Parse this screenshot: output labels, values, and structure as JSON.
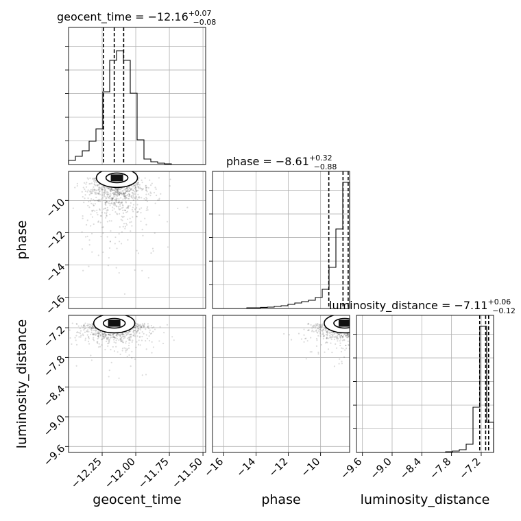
{
  "chart_data": {
    "type": "corner",
    "parameters": [
      {
        "name": "geocent_time",
        "title": {
          "prefix": "geocent_time = ",
          "median": "−12.16",
          "plus": "+0.07",
          "minus": "−0.08"
        },
        "median": -12.16,
        "q_low": -12.24,
        "q_high": -12.09,
        "range": [
          -12.5,
          -11.48
        ],
        "ticks": [
          -12.25,
          -12.0,
          -11.75,
          -11.5
        ],
        "tick_labels": [
          "−12.25",
          "−12.00",
          "−11.75",
          "−11.50"
        ],
        "hist": [
          0.03,
          0.06,
          0.1,
          0.17,
          0.26,
          0.53,
          0.76,
          0.83,
          0.76,
          0.52,
          0.18,
          0.04,
          0.02,
          0.01,
          0.005,
          0,
          0,
          0,
          0,
          0
        ]
      },
      {
        "name": "phase",
        "title": {
          "prefix": "phase = ",
          "median": "−8.61",
          "plus": "+0.32",
          "minus": "−0.88"
        },
        "median": -8.61,
        "q_low": -9.49,
        "q_high": -8.29,
        "range": [
          -16.7,
          -8.2
        ],
        "ticks": [
          -16,
          -14,
          -12,
          -10
        ],
        "tick_labels": [
          "−16",
          "−14",
          "−12",
          "−10"
        ],
        "hist": [
          0,
          0,
          0,
          0,
          0,
          0.005,
          0.005,
          0.008,
          0.01,
          0.015,
          0.02,
          0.03,
          0.04,
          0.05,
          0.06,
          0.08,
          0.14,
          0.3,
          0.58,
          0.92
        ]
      },
      {
        "name": "luminosity_distance",
        "title": {
          "prefix": "luminosity_distance = ",
          "median": "−7.11",
          "plus": "+0.06",
          "minus": "−0.12"
        },
        "median": -7.11,
        "q_low": -7.23,
        "q_high": -7.05,
        "range": [
          -9.72,
          -6.95
        ],
        "ticks": [
          -9.6,
          -9.0,
          -8.4,
          -7.8,
          -7.2
        ],
        "tick_labels": [
          "−9.6",
          "−9.0",
          "−8.4",
          "−7.8",
          "−7.2"
        ],
        "hist": [
          0,
          0,
          0,
          0,
          0,
          0,
          0,
          0,
          0,
          0,
          0,
          0,
          0,
          0.005,
          0.01,
          0.02,
          0.06,
          0.33,
          0.92,
          0.22
        ]
      }
    ],
    "pairs": [
      {
        "x": "geocent_time",
        "y": "phase",
        "mode": {
          "x": -12.14,
          "y": -8.6
        }
      },
      {
        "x": "geocent_time",
        "y": "luminosity_distance",
        "mode": {
          "x": -12.16,
          "y": -7.11
        }
      },
      {
        "x": "phase",
        "y": "luminosity_distance",
        "mode": {
          "x": -8.5,
          "y": -7.11
        }
      }
    ]
  }
}
